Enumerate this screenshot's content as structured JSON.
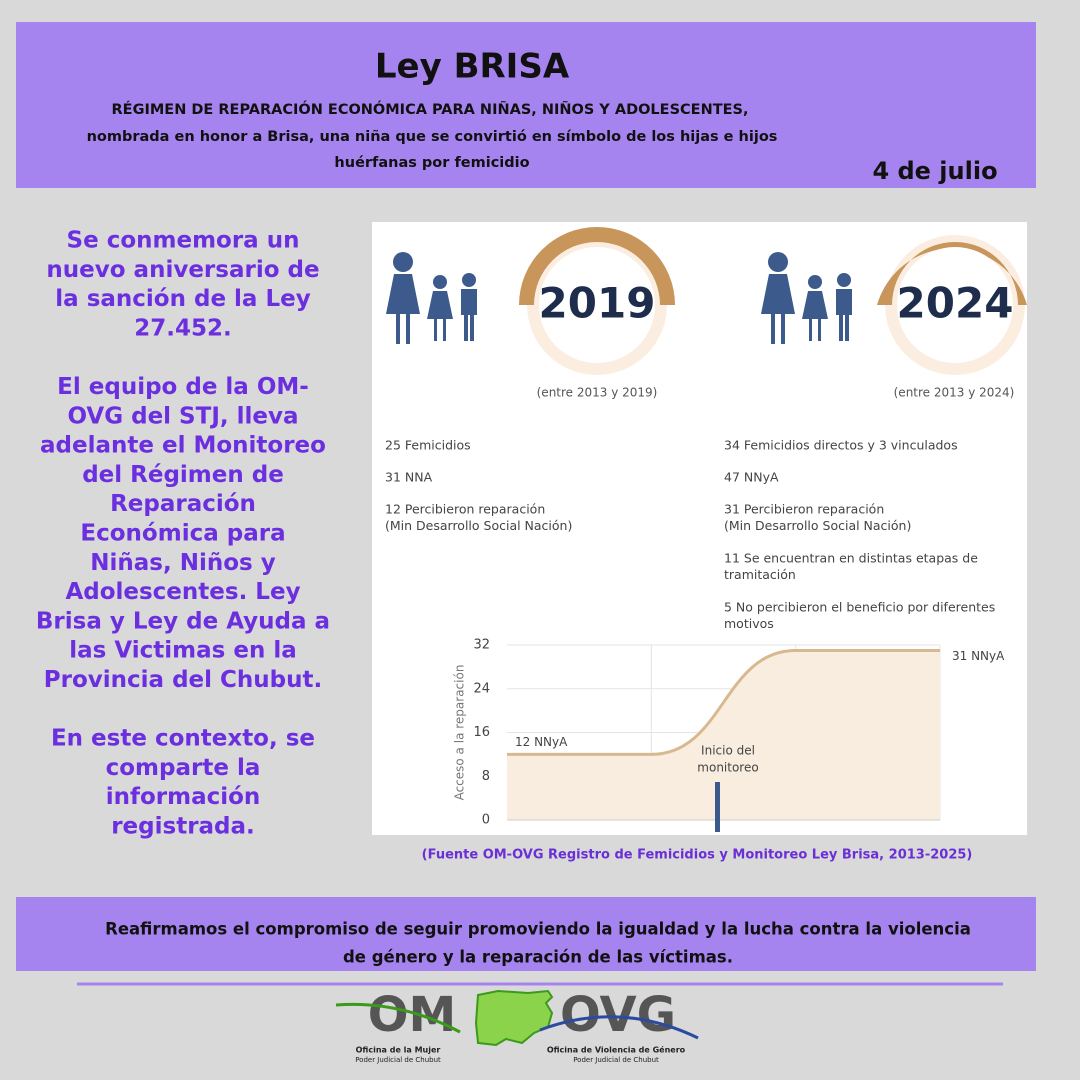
{
  "header": {
    "title": "Ley BRISA",
    "subtitle_lines": [
      "RÉGIMEN DE REPARACIÓN ECONÓMICA PARA NIÑAS, NIÑOS Y ADOLESCENTES,",
      "nombrada en honor a Brisa, una niña que se convirtió en símbolo de los hijas e hijos",
      "huérfanas por femicidio"
    ],
    "date": "4 de julio"
  },
  "intro": {
    "paragraphs": [
      [
        "Se conmemora un",
        "nuevo aniversario de",
        "la sanción de la Ley",
        "27.452."
      ],
      [
        "El equipo de la OM-",
        "OVG del STJ, lleva",
        "adelante el Monitoreo",
        "del Régimen de",
        "Reparación",
        "Económica para",
        "Niñas, Niños y",
        "Adolescentes. Ley",
        "Brisa y Ley de Ayuda a",
        "las Victimas en la",
        "Provincia del Chubut."
      ],
      [
        "En este contexto, se",
        "comparte la",
        "información",
        "registrada."
      ]
    ]
  },
  "infographic": {
    "panels": [
      {
        "year": "2019",
        "range": "(entre 2013 y 2019)",
        "items": [
          [
            "25 Femicidios"
          ],
          [
            "31 NNA"
          ],
          [
            "12 Percibieron reparación",
            "(Min Desarrollo Social Nación)"
          ]
        ]
      },
      {
        "year": "2024",
        "range": "(entre 2013 y 2024)",
        "items": [
          [
            "34 Femicidios directos y 3 vinculados"
          ],
          [
            "47 NNyA"
          ],
          [
            "31 Percibieron reparación",
            "(Min Desarrollo Social Nación)"
          ],
          [
            "11 Se encuentran en distintas etapas de",
            "tramitación"
          ],
          [
            "5 No percibieron el beneficio por diferentes",
            "motivos"
          ]
        ]
      }
    ],
    "chart": {
      "type": "line",
      "y_label": "Acceso a la reparación",
      "categories": [
        null,
        null,
        null,
        null
      ],
      "values": [
        12,
        12,
        31,
        31
      ],
      "value_labels": [
        "12 NNyA",
        null,
        null,
        "31 NNyA"
      ],
      "ylim": [
        0,
        32
      ],
      "yticks": [
        0,
        8,
        16,
        24,
        32
      ],
      "annotation_lines": [
        "Inicio del",
        "monitoreo"
      ],
      "color": "#d8b88e"
    }
  },
  "source": "(Fuente OM-OVG Registro de Femicidios y Monitoreo Ley Brisa, 2013-2025)",
  "footer": {
    "lines": [
      "Reafirmamos el compromiso de seguir promoviendo la igualdad y la lucha contra la violencia",
      "de género y la reparación de las víctimas."
    ]
  },
  "logo": {
    "left": "OM",
    "right": "OVG",
    "left_caption": [
      "Oficina de la Mujer",
      "Poder Judicial de Chubut"
    ],
    "right_caption": [
      "Oficina de Violencia de Género",
      "Poder Judicial de Chubut"
    ]
  }
}
